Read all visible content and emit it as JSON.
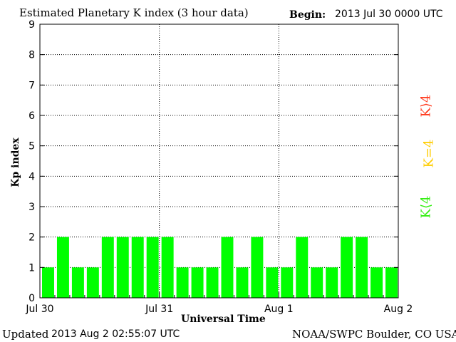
{
  "header": {
    "title": "Estimated Planetary K index (3 hour data)",
    "begin_label": "Begin:",
    "begin_value": "2013 Jul 30 0000 UTC"
  },
  "footer": {
    "updated_label": "Updated",
    "updated_value": "2013 Aug  2 02:55:07 UTC",
    "credit": "NOAA/SWPC Boulder, CO USA"
  },
  "legend": {
    "high": "K⟩4",
    "eq": "K=4",
    "low": "K⟨4",
    "colors": {
      "high": "#ff3b1f",
      "eq": "#ffcc00",
      "low": "#33ee11"
    }
  },
  "chart_data": {
    "type": "bar",
    "title": "Estimated Planetary K index (3 hour data)",
    "xlabel": "Universal Time",
    "ylabel": "Kp index",
    "ylim": [
      0,
      9
    ],
    "yticks": [
      0,
      1,
      2,
      3,
      4,
      5,
      6,
      7,
      8,
      9
    ],
    "x_tick_labels": [
      "Jul 30",
      "Jul 31",
      "Aug 1",
      "Aug 2"
    ],
    "grid": "dotted at day boundaries and integer Kp levels",
    "bar_color": "#00ff00",
    "interval_hours": 3,
    "start": "2013 Jul 30 0000 UTC",
    "values": [
      1,
      2,
      1,
      1,
      2,
      2,
      2,
      2,
      2,
      1,
      1,
      1,
      2,
      1,
      2,
      1,
      1,
      2,
      1,
      1,
      2,
      2,
      1,
      1
    ]
  }
}
